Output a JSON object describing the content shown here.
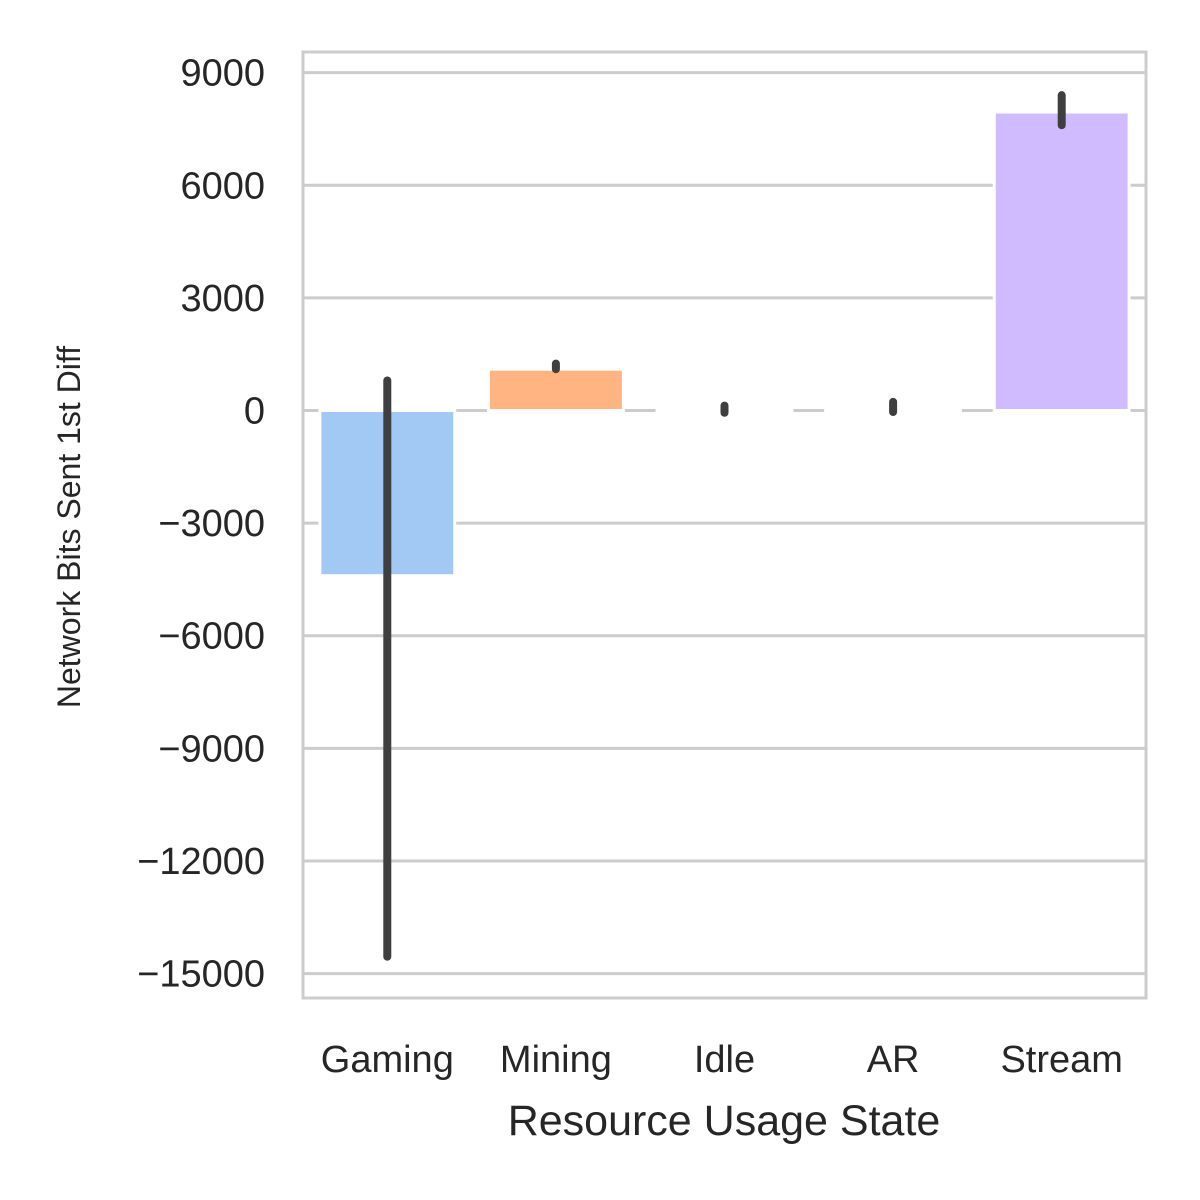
{
  "chart_data": {
    "type": "bar",
    "title": "",
    "xlabel": "Resource Usage State",
    "ylabel": "Network Bits Sent 1st Diff",
    "categories": [
      "Gaming",
      "Mining",
      "Idle",
      "AR",
      "Stream"
    ],
    "values": [
      -4400,
      1100,
      0,
      0,
      7950
    ],
    "error_bars": [
      {
        "low": -14550,
        "high": 800
      },
      {
        "low": 1100,
        "high": 1250
      },
      {
        "low": -60,
        "high": 130
      },
      {
        "low": -40,
        "high": 230
      },
      {
        "low": 7600,
        "high": 8400
      }
    ],
    "bar_colors": [
      "#a1c9f4",
      "#ffb482",
      "#8de5a1",
      "#ff9f9b",
      "#d0bbff"
    ],
    "error_color": "#3f3f3f",
    "yticks": [
      9000,
      6000,
      3000,
      0,
      -3000,
      -6000,
      -9000,
      -12000,
      -15000
    ],
    "ytick_labels": [
      "9000",
      "6000",
      "3000",
      "0",
      "−3000",
      "−6000",
      "−9000",
      "−12000",
      "−15000"
    ],
    "ylim": [
      -15650,
      9550
    ],
    "grid": "horizontal"
  }
}
